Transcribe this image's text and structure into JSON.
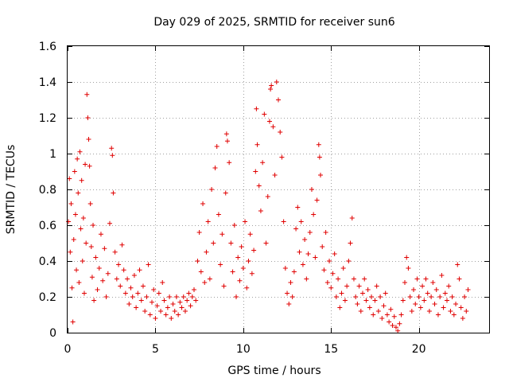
{
  "chart_data": {
    "type": "scatter",
    "title": "Day 029 of 2025, SRMTID for receiver sun6",
    "xlabel": "GPS time / hours",
    "ylabel": "SRMTID / TECUs",
    "xlim": [
      0,
      24
    ],
    "ylim": [
      0,
      1.6
    ],
    "xticks": [
      0,
      5,
      10,
      15,
      20
    ],
    "yticks": [
      0,
      0.2,
      0.4,
      0.6,
      0.8,
      1,
      1.2,
      1.4,
      1.6
    ],
    "xtick_labels": [
      "0",
      "5",
      "10",
      "15",
      "20"
    ],
    "ytick_labels": [
      "0",
      "0.2",
      "0.4",
      "0.6",
      "0.8",
      "1",
      "1.2",
      "1.4",
      "1.6"
    ],
    "grid": true,
    "marker": "+",
    "color": "#e00000",
    "series": [
      {
        "name": "sun6",
        "points": [
          [
            0.05,
            0.62
          ],
          [
            0.1,
            0.86
          ],
          [
            0.15,
            0.45
          ],
          [
            0.2,
            0.72
          ],
          [
            0.25,
            0.25
          ],
          [
            0.3,
            0.06
          ],
          [
            0.35,
            0.52
          ],
          [
            0.4,
            0.9
          ],
          [
            0.45,
            0.66
          ],
          [
            0.5,
            0.35
          ],
          [
            0.55,
            0.97
          ],
          [
            0.6,
            0.78
          ],
          [
            0.65,
            0.28
          ],
          [
            0.7,
            1.01
          ],
          [
            0.75,
            0.58
          ],
          [
            0.8,
            0.85
          ],
          [
            0.85,
            0.4
          ],
          [
            0.9,
            0.64
          ],
          [
            0.95,
            0.22
          ],
          [
            1.0,
            0.94
          ],
          [
            1.05,
            0.5
          ],
          [
            1.1,
            1.33
          ],
          [
            1.15,
            1.2
          ],
          [
            1.2,
            1.08
          ],
          [
            1.25,
            0.93
          ],
          [
            1.3,
            0.72
          ],
          [
            1.35,
            0.48
          ],
          [
            1.4,
            0.31
          ],
          [
            1.45,
            0.6
          ],
          [
            1.5,
            0.18
          ],
          [
            1.6,
            0.42
          ],
          [
            1.7,
            0.24
          ],
          [
            1.8,
            0.36
          ],
          [
            1.9,
            0.55
          ],
          [
            2.0,
            0.29
          ],
          [
            2.1,
            0.47
          ],
          [
            2.2,
            0.2
          ],
          [
            2.3,
            0.33
          ],
          [
            2.4,
            0.61
          ],
          [
            2.5,
            1.03
          ],
          [
            2.55,
            0.99
          ],
          [
            2.6,
            0.78
          ],
          [
            2.7,
            0.45
          ],
          [
            2.8,
            0.3
          ],
          [
            2.9,
            0.38
          ],
          [
            3.0,
            0.26
          ],
          [
            3.1,
            0.49
          ],
          [
            3.2,
            0.35
          ],
          [
            3.3,
            0.22
          ],
          [
            3.4,
            0.3
          ],
          [
            3.5,
            0.16
          ],
          [
            3.6,
            0.25
          ],
          [
            3.7,
            0.2
          ],
          [
            3.8,
            0.32
          ],
          [
            3.9,
            0.14
          ],
          [
            4.0,
            0.22
          ],
          [
            4.1,
            0.35
          ],
          [
            4.2,
            0.18
          ],
          [
            4.3,
            0.26
          ],
          [
            4.4,
            0.12
          ],
          [
            4.5,
            0.2
          ],
          [
            4.6,
            0.38
          ],
          [
            4.7,
            0.1
          ],
          [
            4.8,
            0.17
          ],
          [
            4.9,
            0.24
          ],
          [
            5.0,
            0.08
          ],
          [
            5.1,
            0.15
          ],
          [
            5.2,
            0.22
          ],
          [
            5.3,
            0.12
          ],
          [
            5.4,
            0.28
          ],
          [
            5.5,
            0.18
          ],
          [
            5.6,
            0.1
          ],
          [
            5.7,
            0.14
          ],
          [
            5.8,
            0.2
          ],
          [
            5.9,
            0.08
          ],
          [
            6.0,
            0.16
          ],
          [
            6.1,
            0.12
          ],
          [
            6.2,
            0.2
          ],
          [
            6.3,
            0.1
          ],
          [
            6.4,
            0.17
          ],
          [
            6.5,
            0.14
          ],
          [
            6.6,
            0.2
          ],
          [
            6.7,
            0.12
          ],
          [
            6.8,
            0.18
          ],
          [
            6.9,
            0.22
          ],
          [
            7.0,
            0.15
          ],
          [
            7.1,
            0.2
          ],
          [
            7.2,
            0.24
          ],
          [
            7.3,
            0.18
          ],
          [
            7.4,
            0.4
          ],
          [
            7.5,
            0.56
          ],
          [
            7.6,
            0.34
          ],
          [
            7.7,
            0.72
          ],
          [
            7.8,
            0.28
          ],
          [
            7.9,
            0.45
          ],
          [
            8.0,
            0.62
          ],
          [
            8.1,
            0.3
          ],
          [
            8.2,
            0.8
          ],
          [
            8.3,
            0.5
          ],
          [
            8.4,
            0.92
          ],
          [
            8.5,
            1.04
          ],
          [
            8.6,
            0.66
          ],
          [
            8.7,
            0.38
          ],
          [
            8.8,
            0.55
          ],
          [
            8.9,
            0.26
          ],
          [
            9.0,
            0.78
          ],
          [
            9.05,
            1.11
          ],
          [
            9.1,
            1.07
          ],
          [
            9.2,
            0.95
          ],
          [
            9.3,
            0.5
          ],
          [
            9.4,
            0.34
          ],
          [
            9.5,
            0.6
          ],
          [
            9.6,
            0.2
          ],
          [
            9.7,
            0.42
          ],
          [
            9.8,
            0.29
          ],
          [
            9.9,
            0.48
          ],
          [
            10.0,
            0.36
          ],
          [
            10.1,
            0.62
          ],
          [
            10.2,
            0.25
          ],
          [
            10.3,
            0.4
          ],
          [
            10.4,
            0.55
          ],
          [
            10.5,
            0.33
          ],
          [
            10.6,
            0.46
          ],
          [
            10.7,
            0.9
          ],
          [
            10.75,
            1.25
          ],
          [
            10.8,
            1.05
          ],
          [
            10.9,
            0.82
          ],
          [
            11.0,
            0.68
          ],
          [
            11.1,
            0.95
          ],
          [
            11.2,
            1.22
          ],
          [
            11.3,
            0.5
          ],
          [
            11.4,
            0.76
          ],
          [
            11.5,
            1.18
          ],
          [
            11.55,
            1.36
          ],
          [
            11.6,
            1.38
          ],
          [
            11.7,
            1.15
          ],
          [
            11.8,
            0.88
          ],
          [
            11.9,
            1.4
          ],
          [
            12.0,
            1.3
          ],
          [
            12.1,
            1.12
          ],
          [
            12.2,
            0.98
          ],
          [
            12.3,
            0.62
          ],
          [
            12.4,
            0.36
          ],
          [
            12.5,
            0.22
          ],
          [
            12.6,
            0.16
          ],
          [
            12.7,
            0.28
          ],
          [
            12.8,
            0.2
          ],
          [
            12.9,
            0.34
          ],
          [
            13.0,
            0.58
          ],
          [
            13.1,
            0.7
          ],
          [
            13.2,
            0.45
          ],
          [
            13.3,
            0.62
          ],
          [
            13.4,
            0.38
          ],
          [
            13.5,
            0.52
          ],
          [
            13.6,
            0.3
          ],
          [
            13.7,
            0.44
          ],
          [
            13.8,
            0.56
          ],
          [
            13.9,
            0.8
          ],
          [
            14.0,
            0.66
          ],
          [
            14.1,
            0.42
          ],
          [
            14.2,
            0.74
          ],
          [
            14.3,
            1.05
          ],
          [
            14.35,
            0.98
          ],
          [
            14.4,
            0.88
          ],
          [
            14.5,
            0.48
          ],
          [
            14.6,
            0.35
          ],
          [
            14.7,
            0.56
          ],
          [
            14.8,
            0.28
          ],
          [
            14.9,
            0.4
          ],
          [
            15.0,
            0.25
          ],
          [
            15.1,
            0.33
          ],
          [
            15.2,
            0.44
          ],
          [
            15.3,
            0.2
          ],
          [
            15.4,
            0.3
          ],
          [
            15.5,
            0.14
          ],
          [
            15.6,
            0.22
          ],
          [
            15.7,
            0.36
          ],
          [
            15.8,
            0.18
          ],
          [
            15.9,
            0.26
          ],
          [
            16.0,
            0.4
          ],
          [
            16.1,
            0.5
          ],
          [
            16.2,
            0.64
          ],
          [
            16.3,
            0.3
          ],
          [
            16.4,
            0.2
          ],
          [
            16.5,
            0.16
          ],
          [
            16.6,
            0.26
          ],
          [
            16.7,
            0.12
          ],
          [
            16.8,
            0.22
          ],
          [
            16.9,
            0.3
          ],
          [
            17.0,
            0.18
          ],
          [
            17.1,
            0.24
          ],
          [
            17.2,
            0.14
          ],
          [
            17.3,
            0.2
          ],
          [
            17.4,
            0.1
          ],
          [
            17.5,
            0.18
          ],
          [
            17.6,
            0.26
          ],
          [
            17.7,
            0.12
          ],
          [
            17.8,
            0.2
          ],
          [
            17.9,
            0.08
          ],
          [
            18.0,
            0.15
          ],
          [
            18.1,
            0.22
          ],
          [
            18.2,
            0.1
          ],
          [
            18.3,
            0.06
          ],
          [
            18.4,
            0.13
          ],
          [
            18.5,
            0.04
          ],
          [
            18.6,
            0.09
          ],
          [
            18.7,
            0.03
          ],
          [
            18.8,
            0.01
          ],
          [
            18.9,
            0.05
          ],
          [
            19.0,
            0.1
          ],
          [
            19.1,
            0.18
          ],
          [
            19.2,
            0.28
          ],
          [
            19.3,
            0.42
          ],
          [
            19.4,
            0.36
          ],
          [
            19.5,
            0.2
          ],
          [
            19.6,
            0.12
          ],
          [
            19.7,
            0.24
          ],
          [
            19.8,
            0.16
          ],
          [
            19.9,
            0.3
          ],
          [
            20.0,
            0.2
          ],
          [
            20.1,
            0.14
          ],
          [
            20.2,
            0.26
          ],
          [
            20.3,
            0.18
          ],
          [
            20.4,
            0.3
          ],
          [
            20.5,
            0.22
          ],
          [
            20.6,
            0.12
          ],
          [
            20.7,
            0.2
          ],
          [
            20.8,
            0.28
          ],
          [
            20.9,
            0.16
          ],
          [
            21.0,
            0.24
          ],
          [
            21.1,
            0.1
          ],
          [
            21.2,
            0.2
          ],
          [
            21.3,
            0.32
          ],
          [
            21.4,
            0.14
          ],
          [
            21.5,
            0.22
          ],
          [
            21.6,
            0.18
          ],
          [
            21.7,
            0.26
          ],
          [
            21.8,
            0.12
          ],
          [
            21.9,
            0.2
          ],
          [
            22.0,
            0.1
          ],
          [
            22.1,
            0.16
          ],
          [
            22.2,
            0.38
          ],
          [
            22.3,
            0.3
          ],
          [
            22.4,
            0.14
          ],
          [
            22.5,
            0.08
          ],
          [
            22.6,
            0.2
          ],
          [
            22.7,
            0.12
          ],
          [
            22.8,
            0.24
          ]
        ]
      }
    ]
  }
}
